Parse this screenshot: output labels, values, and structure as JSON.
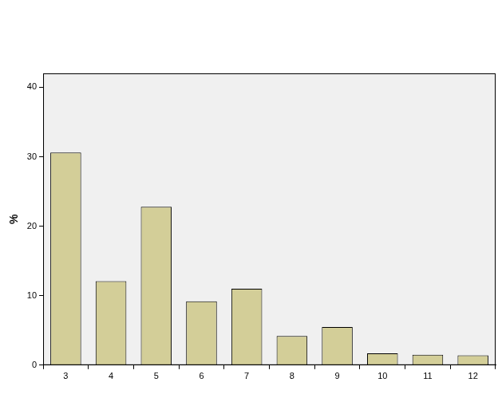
{
  "chart_data": {
    "type": "bar",
    "y_label": "%",
    "categories": [
      "3",
      "4",
      "5",
      "6",
      "7",
      "8",
      "9",
      "10",
      "11",
      "12"
    ],
    "values": [
      30.6,
      12.1,
      22.8,
      9.2,
      11.0,
      4.2,
      5.5,
      1.7,
      1.5,
      1.4
    ],
    "color": "#d3ce98",
    "ylim": [
      0,
      42
    ],
    "yticks": [
      0,
      10,
      20,
      30,
      40
    ],
    "grid": false
  }
}
